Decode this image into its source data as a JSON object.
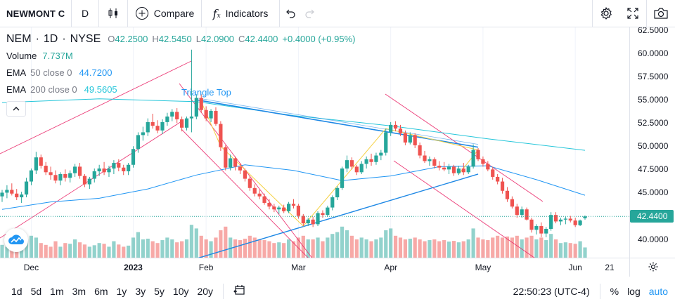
{
  "topbar": {
    "symbol": "NEWMONT C",
    "interval": "D",
    "compare_label": "Compare",
    "indicators_label": "Indicators",
    "icons": [
      "candles-icon",
      "plus-circle-icon",
      "fx-icon",
      "undo-icon",
      "redo-icon",
      "settings-icon",
      "fullscreen-icon",
      "camera-icon"
    ]
  },
  "legend": {
    "ticker": "NEM",
    "interval": "1D",
    "exchange": "NYSE",
    "o_label": "O",
    "o": "42.2500",
    "h_label": "H",
    "h": "42.5450",
    "l_label": "L",
    "l": "42.0900",
    "c_label": "C",
    "c": "42.4400",
    "change": "+0.4000 (+0.95%)",
    "volume_label": "Volume",
    "volume": "7.737M",
    "ema50_label": "EMA",
    "ema50_params": "50 close 0",
    "ema50_value": "44.7200",
    "ema200_label": "EMA",
    "ema200_params": "200 close 0",
    "ema200_value": "49.5605"
  },
  "pattern_label": "Triangle Top",
  "price_axis": {
    "labels": [
      "62.5000",
      "60.0000",
      "57.5000",
      "55.0000",
      "52.5000",
      "50.0000",
      "47.5000",
      "45.0000",
      "40.0000"
    ],
    "last_price": "42.4400"
  },
  "time_axis": {
    "labels": [
      "Dec",
      "2023",
      "Feb",
      "Mar",
      "Apr",
      "May",
      "Jun",
      "21"
    ]
  },
  "bottombar": {
    "ranges": [
      "1d",
      "5d",
      "1m",
      "3m",
      "6m",
      "1y",
      "3y",
      "5y",
      "10y",
      "20y"
    ],
    "time": "22:50:23 (UTC-4)",
    "percent": "%",
    "log": "log",
    "auto": "auto"
  },
  "colors": {
    "up": "#26a69a",
    "down": "#ef5350",
    "ema50": "#2196f3",
    "ema200": "#26c6da",
    "channel": "#e91e63",
    "triangle": "#1e88e5",
    "zigzag": "#f5d142"
  },
  "chart_data": {
    "type": "candlestick",
    "ylim": [
      38.0,
      62.8
    ],
    "candles": [
      [
        44.6,
        45.3,
        44.0,
        45.0
      ],
      [
        45.0,
        45.8,
        44.4,
        45.3
      ],
      [
        45.3,
        46.0,
        44.7,
        44.9
      ],
      [
        44.9,
        45.4,
        44.2,
        44.5
      ],
      [
        44.5,
        45.1,
        43.9,
        44.8
      ],
      [
        44.8,
        46.6,
        44.5,
        46.2
      ],
      [
        46.2,
        47.6,
        45.8,
        47.4
      ],
      [
        47.4,
        49.4,
        47.0,
        48.8
      ],
      [
        48.8,
        49.1,
        47.6,
        47.9
      ],
      [
        47.9,
        48.3,
        46.9,
        47.2
      ],
      [
        47.2,
        47.8,
        46.4,
        46.9
      ],
      [
        46.9,
        47.4,
        46.0,
        46.3
      ],
      [
        46.3,
        47.2,
        45.8,
        47.0
      ],
      [
        47.0,
        47.5,
        46.2,
        46.6
      ],
      [
        46.6,
        47.4,
        46.1,
        47.1
      ],
      [
        47.1,
        48.1,
        46.7,
        47.8
      ],
      [
        47.8,
        48.2,
        46.5,
        46.8
      ],
      [
        46.8,
        47.0,
        45.6,
        45.9
      ],
      [
        45.9,
        46.7,
        45.4,
        46.5
      ],
      [
        46.5,
        47.6,
        46.1,
        47.3
      ],
      [
        47.3,
        48.0,
        46.8,
        47.6
      ],
      [
        47.6,
        48.3,
        46.9,
        47.2
      ],
      [
        47.2,
        47.9,
        46.7,
        47.6
      ],
      [
        47.6,
        48.5,
        47.0,
        48.2
      ],
      [
        48.2,
        48.6,
        47.3,
        47.7
      ],
      [
        47.7,
        48.0,
        46.9,
        47.3
      ],
      [
        47.3,
        48.2,
        46.9,
        48.0
      ],
      [
        48.0,
        50.0,
        47.7,
        49.7
      ],
      [
        49.7,
        51.5,
        49.3,
        51.2
      ],
      [
        51.2,
        52.1,
        50.6,
        51.5
      ],
      [
        51.5,
        53.0,
        51.1,
        52.6
      ],
      [
        52.6,
        53.5,
        51.9,
        52.2
      ],
      [
        52.2,
        52.8,
        51.4,
        51.7
      ],
      [
        51.7,
        52.9,
        51.3,
        52.6
      ],
      [
        52.6,
        53.6,
        52.2,
        53.2
      ],
      [
        53.2,
        54.0,
        52.7,
        53.7
      ],
      [
        53.7,
        54.1,
        52.5,
        52.9
      ],
      [
        52.9,
        53.2,
        51.6,
        52.0
      ],
      [
        52.0,
        53.2,
        51.7,
        53.0
      ],
      [
        53.0,
        60.4,
        51.5,
        53.2
      ],
      [
        53.2,
        55.6,
        52.9,
        55.2
      ],
      [
        55.2,
        55.6,
        53.6,
        53.9
      ],
      [
        53.9,
        54.3,
        52.7,
        53.0
      ],
      [
        53.0,
        54.0,
        52.6,
        53.8
      ],
      [
        53.8,
        54.2,
        52.2,
        52.4
      ],
      [
        52.4,
        52.7,
        49.5,
        49.9
      ],
      [
        49.9,
        50.1,
        47.4,
        47.7
      ],
      [
        47.7,
        49.1,
        47.4,
        48.7
      ],
      [
        48.7,
        48.9,
        47.4,
        47.8
      ],
      [
        47.8,
        48.2,
        47.0,
        47.4
      ],
      [
        47.4,
        47.6,
        46.2,
        46.5
      ],
      [
        46.5,
        46.8,
        45.2,
        45.5
      ],
      [
        45.5,
        45.9,
        44.6,
        44.9
      ],
      [
        44.9,
        45.3,
        44.3,
        44.6
      ],
      [
        44.6,
        44.9,
        43.7,
        43.9
      ],
      [
        43.9,
        44.3,
        43.2,
        43.5
      ],
      [
        43.5,
        43.8,
        42.9,
        43.2
      ],
      [
        43.2,
        43.6,
        42.7,
        43.4
      ],
      [
        43.4,
        43.7,
        42.8,
        43.0
      ],
      [
        43.0,
        44.0,
        42.8,
        43.8
      ],
      [
        43.8,
        44.3,
        43.3,
        43.6
      ],
      [
        43.6,
        43.8,
        42.2,
        42.5
      ],
      [
        42.5,
        42.7,
        41.4,
        41.7
      ],
      [
        41.7,
        42.3,
        41.4,
        42.1
      ],
      [
        42.1,
        42.4,
        41.3,
        41.6
      ],
      [
        41.6,
        43.0,
        41.4,
        42.8
      ],
      [
        42.8,
        43.1,
        42.3,
        42.6
      ],
      [
        42.6,
        43.6,
        42.4,
        43.4
      ],
      [
        43.4,
        44.7,
        43.1,
        44.5
      ],
      [
        44.5,
        45.7,
        44.2,
        45.5
      ],
      [
        45.5,
        47.8,
        45.3,
        47.6
      ],
      [
        47.6,
        49.0,
        47.2,
        48.5
      ],
      [
        48.5,
        48.8,
        47.5,
        47.8
      ],
      [
        47.8,
        48.0,
        46.9,
        47.2
      ],
      [
        47.2,
        48.4,
        47.0,
        48.1
      ],
      [
        48.1,
        48.9,
        47.6,
        48.6
      ],
      [
        48.6,
        49.2,
        47.9,
        48.3
      ],
      [
        48.3,
        49.3,
        48.0,
        49.0
      ],
      [
        49.0,
        49.6,
        48.5,
        49.3
      ],
      [
        49.3,
        51.9,
        49.0,
        51.5
      ],
      [
        51.5,
        52.6,
        51.1,
        52.3
      ],
      [
        52.3,
        52.7,
        51.6,
        51.9
      ],
      [
        51.9,
        52.3,
        51.1,
        51.4
      ],
      [
        51.4,
        51.7,
        50.1,
        50.4
      ],
      [
        50.4,
        51.5,
        50.2,
        51.2
      ],
      [
        51.2,
        51.4,
        49.8,
        50.1
      ],
      [
        50.1,
        50.4,
        48.7,
        49.0
      ],
      [
        49.0,
        49.5,
        48.2,
        48.4
      ],
      [
        48.4,
        48.9,
        47.9,
        48.6
      ],
      [
        48.6,
        48.8,
        47.6,
        47.9
      ],
      [
        47.9,
        48.4,
        47.4,
        47.7
      ],
      [
        47.7,
        48.3,
        47.3,
        47.5
      ],
      [
        47.5,
        48.1,
        47.0,
        47.8
      ],
      [
        47.8,
        48.0,
        46.8,
        47.1
      ],
      [
        47.1,
        47.9,
        46.9,
        47.6
      ],
      [
        47.6,
        48.2,
        46.9,
        47.2
      ],
      [
        47.2,
        48.0,
        47.0,
        47.8
      ],
      [
        47.8,
        50.2,
        47.6,
        49.6
      ],
      [
        49.6,
        49.8,
        48.4,
        48.6
      ],
      [
        48.6,
        48.9,
        47.8,
        48.1
      ],
      [
        48.1,
        48.4,
        47.3,
        47.5
      ],
      [
        47.5,
        47.8,
        46.4,
        46.7
      ],
      [
        46.7,
        47.0,
        45.9,
        46.2
      ],
      [
        46.2,
        46.6,
        44.9,
        45.2
      ],
      [
        45.2,
        45.6,
        44.0,
        44.3
      ],
      [
        44.3,
        44.6,
        43.3,
        43.5
      ],
      [
        43.5,
        43.8,
        42.3,
        42.6
      ],
      [
        42.6,
        43.5,
        42.3,
        43.2
      ],
      [
        43.2,
        43.4,
        42.0,
        42.1
      ],
      [
        42.1,
        42.3,
        40.7,
        41.0
      ],
      [
        41.0,
        41.6,
        40.5,
        41.4
      ],
      [
        41.4,
        41.8,
        40.2,
        40.6
      ],
      [
        40.6,
        41.3,
        40.2,
        41.1
      ],
      [
        41.1,
        42.9,
        40.9,
        42.6
      ],
      [
        42.6,
        42.9,
        41.7,
        41.9
      ],
      [
        41.9,
        42.3,
        41.5,
        42.1
      ],
      [
        42.1,
        42.4,
        41.6,
        42.2
      ],
      [
        42.2,
        42.5,
        41.8,
        42.0
      ],
      [
        42.0,
        42.3,
        41.3,
        41.5
      ],
      [
        41.5,
        42.1,
        41.4,
        42.0
      ],
      [
        42.25,
        42.545,
        42.09,
        42.44
      ]
    ],
    "volume_bar_heights_rel": [
      0.35,
      0.3,
      0.4,
      0.32,
      0.28,
      0.5,
      0.6,
      0.55,
      0.4,
      0.35,
      0.3,
      0.45,
      0.3,
      0.4,
      0.38,
      0.5,
      0.42,
      0.36,
      0.3,
      0.34,
      0.4,
      0.38,
      0.3,
      0.45,
      0.36,
      0.3,
      0.33,
      0.55,
      0.7,
      0.5,
      0.52,
      0.45,
      0.4,
      0.48,
      0.55,
      0.5,
      0.42,
      0.45,
      0.5,
      0.9,
      0.8,
      0.6,
      0.5,
      0.45,
      0.55,
      0.75,
      0.85,
      0.55,
      0.5,
      0.48,
      0.52,
      0.6,
      0.55,
      0.5,
      0.48,
      0.45,
      0.4,
      0.42,
      0.4,
      0.5,
      0.45,
      0.55,
      0.6,
      0.5,
      0.5,
      0.55,
      0.45,
      0.55,
      0.65,
      0.7,
      0.85,
      0.75,
      0.6,
      0.5,
      0.55,
      0.5,
      0.45,
      0.5,
      0.55,
      0.75,
      0.8,
      0.6,
      0.55,
      0.5,
      0.52,
      0.55,
      0.5,
      0.45,
      0.48,
      0.5,
      0.45,
      0.48,
      0.44,
      0.46,
      0.42,
      0.45,
      0.5,
      0.8,
      0.55,
      0.5,
      0.48,
      0.55,
      0.6,
      0.55,
      0.58,
      0.55,
      0.6,
      0.5,
      0.55,
      0.6,
      0.5,
      0.55,
      0.48,
      0.65,
      0.5,
      0.4,
      0.42,
      0.4,
      0.38,
      0.45,
      0.28
    ],
    "ema50": [
      [
        0,
        43.2
      ],
      [
        10,
        44.0
      ],
      [
        20,
        44.4
      ],
      [
        30,
        45.4
      ],
      [
        40,
        46.9
      ],
      [
        50,
        48.0
      ],
      [
        60,
        47.4
      ],
      [
        70,
        46.3
      ],
      [
        80,
        46.8
      ],
      [
        90,
        47.8
      ],
      [
        100,
        47.9
      ],
      [
        110,
        46.4
      ],
      [
        120,
        44.72
      ]
    ],
    "ema200": [
      [
        0,
        54.7
      ],
      [
        20,
        55.1
      ],
      [
        40,
        54.8
      ],
      [
        60,
        53.3
      ],
      [
        80,
        52.2
      ],
      [
        100,
        50.8
      ],
      [
        120,
        49.56
      ]
    ]
  }
}
